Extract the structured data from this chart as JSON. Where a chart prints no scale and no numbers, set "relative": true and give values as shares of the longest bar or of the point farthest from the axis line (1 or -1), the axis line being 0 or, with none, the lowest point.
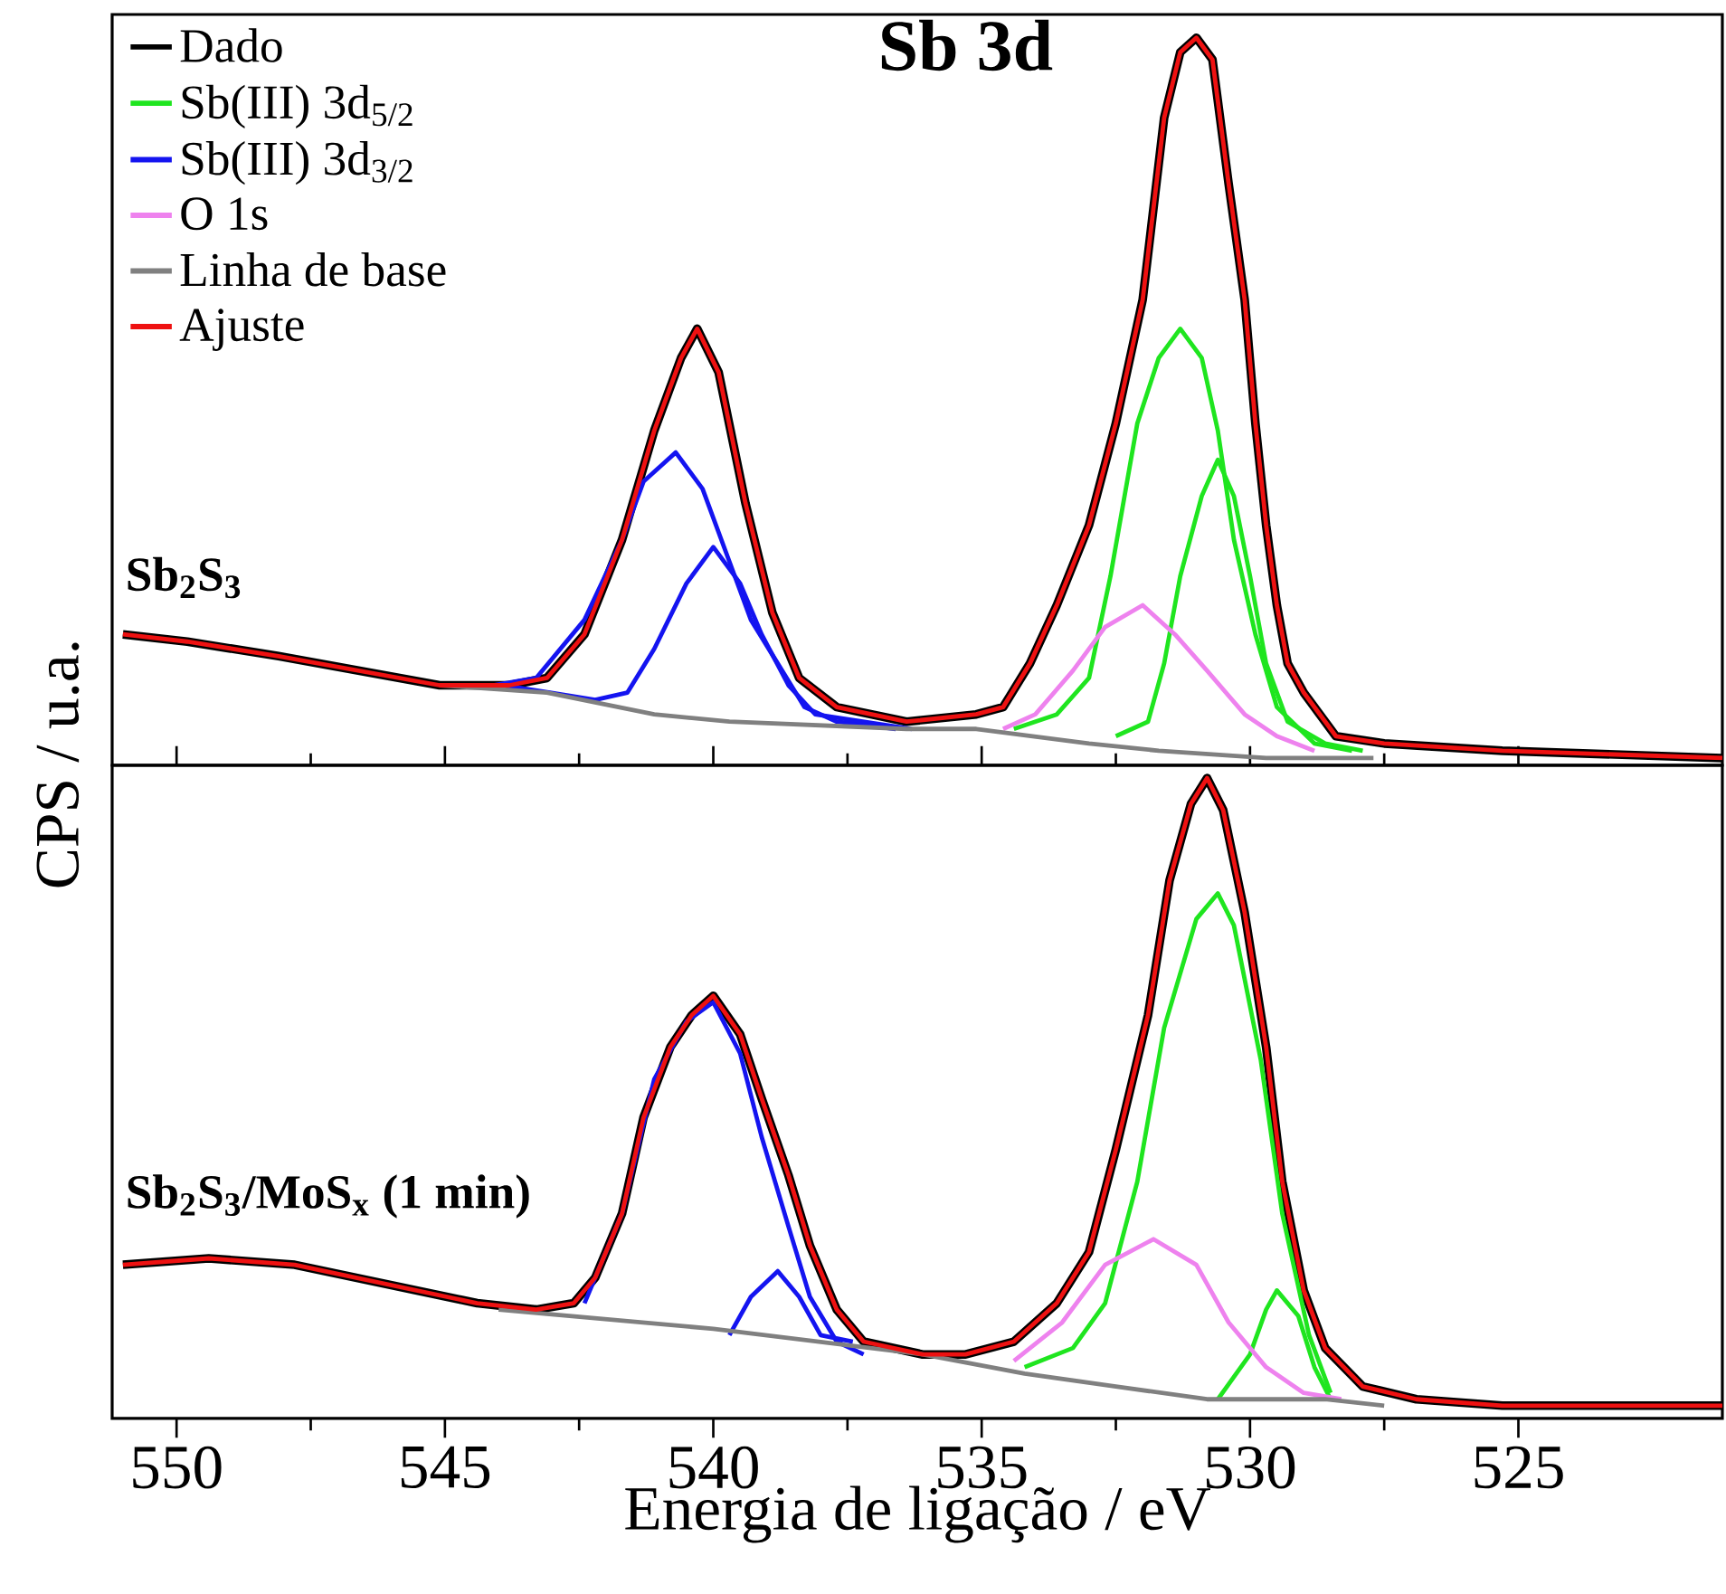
{
  "chart_data": [
    {
      "type": "line",
      "title": "Sb 3d",
      "ylabel": "CPS / u.a.",
      "annotations": [
        "**Sb$_{2}$S$_{3}$**"
      ],
      "relative": true,
      "xlim": [
        551.2,
        521.2
      ],
      "xticks": [
        550,
        545,
        540,
        535,
        530,
        525
      ],
      "tick_labels": false,
      "legend": "top left",
      "line_style": "solid",
      "series": [
        {
          "name": "Dado",
          "color": "#000000",
          "x": [
            551.0,
            549.8,
            548.1,
            545.1,
            543.8,
            543.1,
            542.4,
            541.7,
            541.1,
            540.6,
            540.3,
            539.9,
            539.4,
            538.9,
            538.4,
            537.7,
            536.4,
            535.1,
            534.6,
            534.1,
            533.6,
            533.0,
            532.5,
            532.0,
            531.6,
            531.3,
            531.0,
            530.7,
            530.4,
            530.1,
            529.9,
            529.7,
            529.5,
            529.3,
            529.0,
            528.4,
            527.5,
            525.3,
            521.2
          ],
          "values": [
            0.18,
            0.17,
            0.15,
            0.11,
            0.11,
            0.12,
            0.18,
            0.31,
            0.46,
            0.56,
            0.6,
            0.54,
            0.36,
            0.21,
            0.12,
            0.08,
            0.06,
            0.07,
            0.08,
            0.14,
            0.22,
            0.33,
            0.47,
            0.64,
            0.89,
            0.98,
            1.0,
            0.97,
            0.8,
            0.64,
            0.47,
            0.33,
            0.22,
            0.14,
            0.1,
            0.04,
            0.03,
            0.02,
            0.01
          ]
        },
        {
          "name": "Sb(III) 3d$_{5/2}$",
          "color": "#1fe51f",
          "x": [
            534.4,
            533.6,
            533.0,
            532.6,
            532.1,
            531.7,
            531.3,
            530.9,
            530.6,
            530.3,
            529.9,
            529.5,
            528.8,
            528.1
          ],
          "values": [
            0.05,
            0.07,
            0.12,
            0.26,
            0.47,
            0.56,
            0.6,
            0.56,
            0.46,
            0.31,
            0.18,
            0.08,
            0.03,
            0.02
          ]
        },
        {
          "color": "#1fe51f",
          "x": [
            532.5,
            531.9,
            531.6,
            531.3,
            530.9,
            530.6,
            530.3,
            530.0,
            529.7,
            529.3,
            528.6,
            527.9
          ],
          "values": [
            0.04,
            0.06,
            0.14,
            0.26,
            0.37,
            0.42,
            0.37,
            0.26,
            0.14,
            0.06,
            0.03,
            0.02
          ]
        },
        {
          "name": "Sb(III) 3d$_{3/2}$",
          "color": "#1414f0",
          "x": [
            544.1,
            543.3,
            542.4,
            541.7,
            541.3,
            540.7,
            540.2,
            539.7,
            539.3,
            538.8,
            538.3,
            537.7,
            536.6
          ],
          "values": [
            0.11,
            0.12,
            0.2,
            0.31,
            0.39,
            0.43,
            0.38,
            0.28,
            0.2,
            0.14,
            0.08,
            0.06,
            0.05
          ]
        },
        {
          "color": "#1414f0",
          "x": [
            543.9,
            542.2,
            541.6,
            541.1,
            540.5,
            540.0,
            539.5,
            539.1,
            538.6,
            538.1,
            537.2,
            536.3
          ],
          "values": [
            0.11,
            0.09,
            0.1,
            0.16,
            0.25,
            0.3,
            0.25,
            0.18,
            0.11,
            0.07,
            0.06,
            0.05
          ]
        },
        {
          "name": "O 1s",
          "color": "#ee82ee",
          "x": [
            534.6,
            534.0,
            533.3,
            532.7,
            532.0,
            531.4,
            530.8,
            530.1,
            529.5,
            528.8
          ],
          "values": [
            0.05,
            0.07,
            0.13,
            0.19,
            0.22,
            0.18,
            0.13,
            0.07,
            0.04,
            0.02
          ]
        },
        {
          "name": "Linha de base",
          "color": "#808080",
          "x": [
            545.1,
            543.1,
            541.1,
            539.7,
            536.4,
            535.1,
            533.0,
            531.7,
            529.7,
            527.7
          ],
          "values": [
            0.11,
            0.1,
            0.07,
            0.06,
            0.05,
            0.05,
            0.03,
            0.02,
            0.01,
            0.01
          ]
        },
        {
          "name": "Ajuste",
          "color": "#ee1111",
          "x": [
            551.0,
            549.8,
            548.1,
            545.1,
            543.8,
            543.1,
            542.4,
            541.7,
            541.1,
            540.6,
            540.3,
            539.9,
            539.4,
            538.9,
            538.4,
            537.7,
            536.4,
            535.1,
            534.6,
            534.1,
            533.6,
            533.0,
            532.5,
            532.0,
            531.6,
            531.3,
            531.0,
            530.7,
            530.4,
            530.1,
            529.9,
            529.7,
            529.5,
            529.3,
            529.0,
            528.4,
            527.5,
            525.3,
            521.2
          ],
          "values": [
            0.18,
            0.17,
            0.15,
            0.11,
            0.11,
            0.12,
            0.18,
            0.31,
            0.46,
            0.56,
            0.6,
            0.54,
            0.36,
            0.21,
            0.12,
            0.08,
            0.06,
            0.07,
            0.08,
            0.14,
            0.22,
            0.33,
            0.47,
            0.64,
            0.89,
            0.98,
            1.0,
            0.97,
            0.8,
            0.64,
            0.47,
            0.33,
            0.22,
            0.14,
            0.1,
            0.04,
            0.03,
            0.02,
            0.01
          ]
        }
      ]
    },
    {
      "type": "line",
      "xlabel": "Energia de ligação / eV",
      "annotations": [
        "**Sb$_{2}$S$_{3}$/MoS$_{x}$ (1 min)**"
      ],
      "relative": true,
      "xlim": [
        551.2,
        521.2
      ],
      "xticks": [
        550,
        545,
        540,
        535,
        530,
        525
      ],
      "line_style": "solid",
      "series": [
        {
          "color": "#000000",
          "x": [
            551.0,
            549.4,
            547.8,
            546.1,
            544.4,
            543.3,
            542.6,
            542.2,
            541.7,
            541.3,
            540.8,
            540.4,
            540.0,
            539.5,
            539.1,
            538.6,
            538.2,
            537.7,
            537.2,
            536.1,
            535.3,
            534.4,
            533.6,
            533.0,
            532.5,
            531.9,
            531.5,
            531.1,
            530.8,
            530.5,
            530.1,
            529.7,
            529.4,
            529.0,
            528.6,
            527.9,
            526.9,
            525.3,
            521.2
          ],
          "values": [
            0.24,
            0.25,
            0.24,
            0.21,
            0.18,
            0.17,
            0.18,
            0.22,
            0.32,
            0.47,
            0.58,
            0.63,
            0.66,
            0.6,
            0.5,
            0.38,
            0.27,
            0.17,
            0.12,
            0.1,
            0.1,
            0.12,
            0.18,
            0.26,
            0.42,
            0.63,
            0.84,
            0.96,
            1.0,
            0.95,
            0.79,
            0.58,
            0.37,
            0.2,
            0.11,
            0.05,
            0.03,
            0.02,
            0.02
          ]
        },
        {
          "color": "#1fe51f",
          "x": [
            534.2,
            533.3,
            532.7,
            532.1,
            531.6,
            531.0,
            530.6,
            530.3,
            529.8,
            529.4,
            528.9,
            528.5
          ],
          "values": [
            0.08,
            0.11,
            0.18,
            0.37,
            0.61,
            0.78,
            0.82,
            0.77,
            0.56,
            0.32,
            0.13,
            0.04
          ]
        },
        {
          "color": "#1fe51f",
          "x": [
            530.6,
            530.0,
            529.7,
            529.5,
            529.1,
            528.8,
            528.5
          ],
          "values": [
            0.03,
            0.1,
            0.17,
            0.2,
            0.16,
            0.08,
            0.03
          ]
        },
        {
          "color": "#1414f0",
          "x": [
            542.4,
            541.7,
            541.1,
            540.5,
            540.0,
            539.5,
            539.1,
            538.6,
            538.2,
            537.7,
            537.2
          ],
          "values": [
            0.18,
            0.32,
            0.53,
            0.62,
            0.65,
            0.57,
            0.44,
            0.3,
            0.19,
            0.12,
            0.1
          ]
        },
        {
          "color": "#1414f0",
          "x": [
            539.7,
            539.3,
            538.8,
            538.4,
            538.0,
            537.4
          ],
          "values": [
            0.13,
            0.19,
            0.23,
            0.19,
            0.13,
            0.12
          ]
        },
        {
          "color": "#ee82ee",
          "x": [
            534.4,
            533.5,
            532.7,
            531.8,
            531.0,
            530.4,
            529.7,
            529.0,
            528.3
          ],
          "values": [
            0.09,
            0.15,
            0.24,
            0.28,
            0.24,
            0.15,
            0.08,
            0.04,
            0.03
          ]
        },
        {
          "color": "#808080",
          "x": [
            544.0,
            540.0,
            536.1,
            534.2,
            532.5,
            530.8,
            528.6,
            527.5
          ],
          "values": [
            0.17,
            0.14,
            0.1,
            0.07,
            0.05,
            0.03,
            0.03,
            0.02
          ]
        },
        {
          "color": "#ee1111",
          "x": [
            551.0,
            549.4,
            547.8,
            546.1,
            544.4,
            543.3,
            542.6,
            542.2,
            541.7,
            541.3,
            540.8,
            540.4,
            540.0,
            539.5,
            539.1,
            538.6,
            538.2,
            537.7,
            537.2,
            536.1,
            535.3,
            534.4,
            533.6,
            533.0,
            532.5,
            531.9,
            531.5,
            531.1,
            530.8,
            530.5,
            530.1,
            529.7,
            529.4,
            529.0,
            528.6,
            527.9,
            526.9,
            525.3,
            521.2
          ],
          "values": [
            0.24,
            0.25,
            0.24,
            0.21,
            0.18,
            0.17,
            0.18,
            0.22,
            0.32,
            0.47,
            0.58,
            0.63,
            0.66,
            0.6,
            0.5,
            0.38,
            0.27,
            0.17,
            0.12,
            0.1,
            0.1,
            0.12,
            0.18,
            0.26,
            0.42,
            0.63,
            0.84,
            0.96,
            1.0,
            0.95,
            0.79,
            0.58,
            0.37,
            0.2,
            0.11,
            0.05,
            0.03,
            0.02,
            0.02
          ]
        }
      ]
    }
  ]
}
